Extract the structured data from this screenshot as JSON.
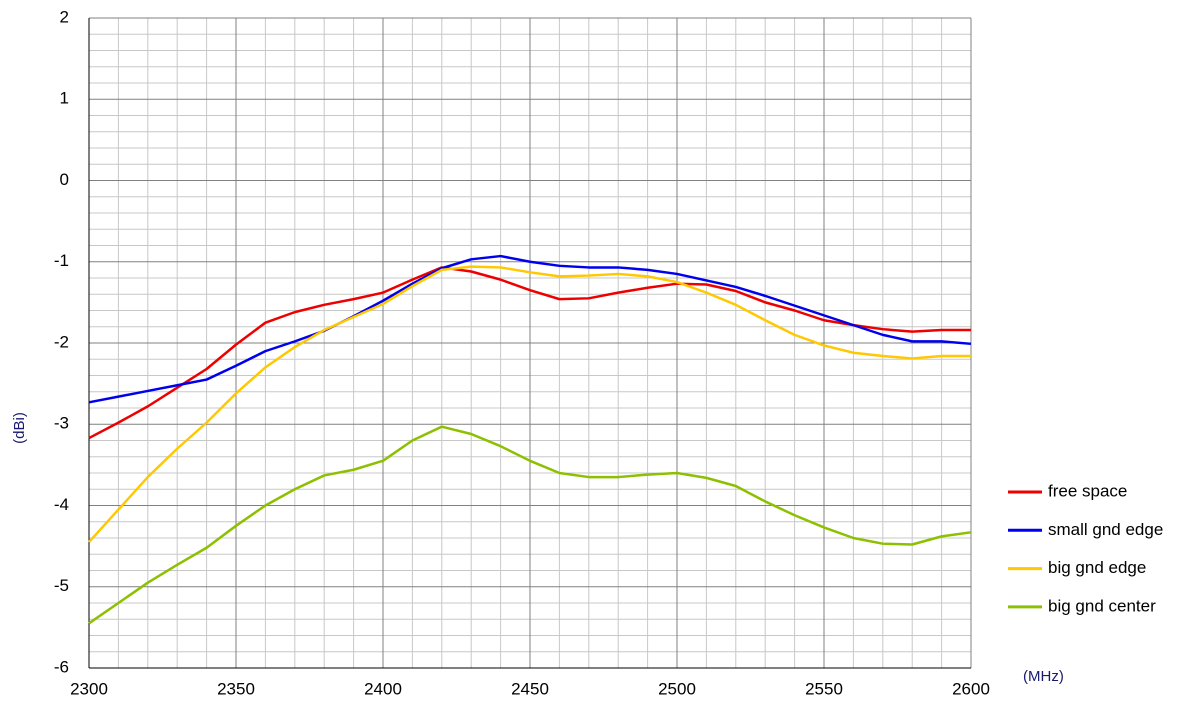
{
  "chart_data": {
    "type": "line",
    "x": [
      2300,
      2310,
      2320,
      2330,
      2340,
      2350,
      2360,
      2370,
      2380,
      2390,
      2400,
      2410,
      2420,
      2430,
      2440,
      2450,
      2460,
      2470,
      2480,
      2490,
      2500,
      2510,
      2520,
      2530,
      2540,
      2550,
      2560,
      2570,
      2580,
      2590,
      2600
    ],
    "series": [
      {
        "name": "free space",
        "color": "#ee0000",
        "values": [
          -3.17,
          -2.98,
          -2.78,
          -2.55,
          -2.32,
          -2.02,
          -1.75,
          -1.62,
          -1.53,
          -1.46,
          -1.38,
          -1.22,
          -1.07,
          -1.12,
          -1.22,
          -1.35,
          -1.46,
          -1.45,
          -1.38,
          -1.32,
          -1.27,
          -1.28,
          -1.36,
          -1.5,
          -1.6,
          -1.72,
          -1.78,
          -1.83,
          -1.86,
          -1.84,
          -1.84
        ]
      },
      {
        "name": "small gnd edge",
        "color": "#0000ee",
        "values": [
          -2.73,
          -2.66,
          -2.59,
          -2.52,
          -2.45,
          -2.28,
          -2.1,
          -1.98,
          -1.85,
          -1.67,
          -1.48,
          -1.27,
          -1.08,
          -0.97,
          -0.93,
          -1.0,
          -1.05,
          -1.07,
          -1.07,
          -1.1,
          -1.15,
          -1.23,
          -1.31,
          -1.42,
          -1.54,
          -1.66,
          -1.78,
          -1.9,
          -1.98,
          -1.98,
          -2.01
        ]
      },
      {
        "name": "big gnd edge",
        "color": "#ffc800",
        "values": [
          -4.45,
          -4.05,
          -3.65,
          -3.3,
          -2.98,
          -2.62,
          -2.3,
          -2.05,
          -1.84,
          -1.68,
          -1.52,
          -1.3,
          -1.1,
          -1.06,
          -1.07,
          -1.13,
          -1.18,
          -1.17,
          -1.15,
          -1.18,
          -1.25,
          -1.38,
          -1.53,
          -1.72,
          -1.9,
          -2.03,
          -2.12,
          -2.16,
          -2.19,
          -2.16,
          -2.16
        ]
      },
      {
        "name": "big gnd center",
        "color": "#8cc000",
        "values": [
          -5.45,
          -5.2,
          -4.95,
          -4.73,
          -4.52,
          -4.25,
          -4.0,
          -3.8,
          -3.63,
          -3.56,
          -3.45,
          -3.2,
          -3.03,
          -3.12,
          -3.27,
          -3.45,
          -3.6,
          -3.65,
          -3.65,
          -3.62,
          -3.6,
          -3.66,
          -3.76,
          -3.95,
          -4.12,
          -4.27,
          -4.4,
          -4.47,
          -4.48,
          -4.38,
          -4.33
        ]
      }
    ],
    "y_label": "(dBi)",
    "x_label": "(MHz)",
    "xlim": [
      2300,
      2600
    ],
    "xticks": [
      2300,
      2350,
      2400,
      2450,
      2500,
      2550,
      2600
    ],
    "ylim": [
      -6,
      2
    ],
    "yticks": [
      -6,
      -5,
      -4,
      -3,
      -2,
      -1,
      0,
      1,
      2
    ],
    "grid": true,
    "legend": "right"
  }
}
